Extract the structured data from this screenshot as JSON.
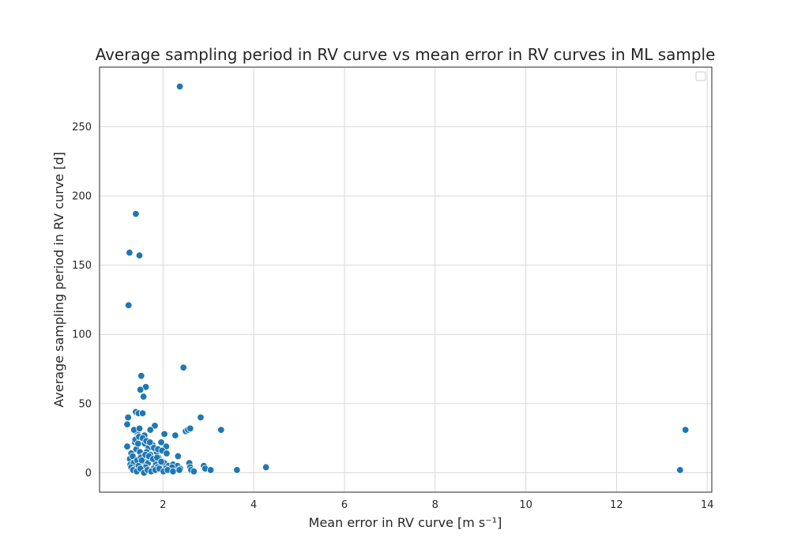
{
  "chart_data": {
    "type": "scatter",
    "title": "Average sampling period in RV curve vs mean error in RV curves in ML sample",
    "xlabel": "Mean error in RV curve [m s⁻¹]",
    "ylabel": "Average sampling period in RV curve [d]",
    "xlim": [
      0.6,
      14.1
    ],
    "ylim": [
      -14,
      293
    ],
    "xticks": [
      2,
      4,
      6,
      8,
      10,
      12,
      14
    ],
    "yticks": [
      0,
      50,
      100,
      150,
      200,
      250
    ],
    "grid": true,
    "legend": "top-right (empty)",
    "colors": {
      "points": "#1f77b4",
      "grid": "#d9d9d9",
      "spine": "#262626"
    },
    "series": [
      {
        "x": [
          2.37,
          1.4,
          1.26,
          1.48,
          1.24,
          2.45,
          1.52,
          1.62,
          1.5,
          1.57,
          2.83,
          1.23,
          1.21,
          1.4,
          1.46,
          1.55,
          1.43,
          1.36,
          1.48,
          1.59,
          1.82,
          1.72,
          2.03,
          2.27,
          2.33,
          2.5,
          2.55,
          2.6,
          3.28,
          1.21,
          1.3,
          1.38,
          1.45,
          1.52,
          1.6,
          1.68,
          1.77,
          1.86,
          1.96,
          2.07,
          1.27,
          1.33,
          1.41,
          1.49,
          1.56,
          1.64,
          1.72,
          1.81,
          1.9,
          2.0,
          1.28,
          1.35,
          1.43,
          1.51,
          1.59,
          1.67,
          1.75,
          1.84,
          1.93,
          2.03,
          2.12,
          2.22,
          2.32,
          1.3,
          1.38,
          1.46,
          1.54,
          1.62,
          1.7,
          1.79,
          1.88,
          1.97,
          2.06,
          2.2,
          2.38,
          1.34,
          1.42,
          1.5,
          1.58,
          1.66,
          1.74,
          1.83,
          1.92,
          2.01,
          2.1,
          2.22,
          2.36,
          1.39,
          1.47,
          1.55,
          1.63,
          1.71,
          1.8,
          1.89,
          1.98,
          2.08,
          1.45,
          1.53,
          1.61,
          1.69,
          1.78,
          1.87,
          1.96,
          2.58,
          2.6,
          2.62,
          2.68,
          2.9,
          2.93,
          3.05,
          3.63,
          4.27,
          13.4,
          13.52
        ],
        "y": [
          279,
          187,
          159,
          157,
          121,
          76,
          70,
          62,
          60,
          55,
          40,
          40,
          35,
          44,
          43,
          43,
          29,
          31,
          32,
          27,
          34,
          31,
          28,
          27,
          12,
          30,
          31,
          32,
          31,
          19,
          14,
          22,
          26,
          24,
          21,
          18,
          20,
          15,
          22,
          19,
          10,
          12,
          17,
          15,
          12,
          15,
          13,
          9,
          11,
          8,
          6,
          7,
          9,
          11,
          8,
          7,
          10,
          6,
          5,
          7,
          5,
          6,
          5,
          4,
          3,
          5,
          3,
          4,
          2,
          3,
          4,
          2,
          3,
          4,
          3,
          2,
          1,
          3,
          0,
          2,
          1,
          2,
          3,
          1,
          2,
          1,
          2,
          24,
          26,
          25,
          23,
          22,
          18,
          17,
          16,
          14,
          21,
          9,
          13,
          12,
          10,
          11,
          8,
          7,
          4,
          2,
          1,
          5,
          3,
          2,
          2,
          4,
          2,
          31
        ]
      }
    ]
  }
}
